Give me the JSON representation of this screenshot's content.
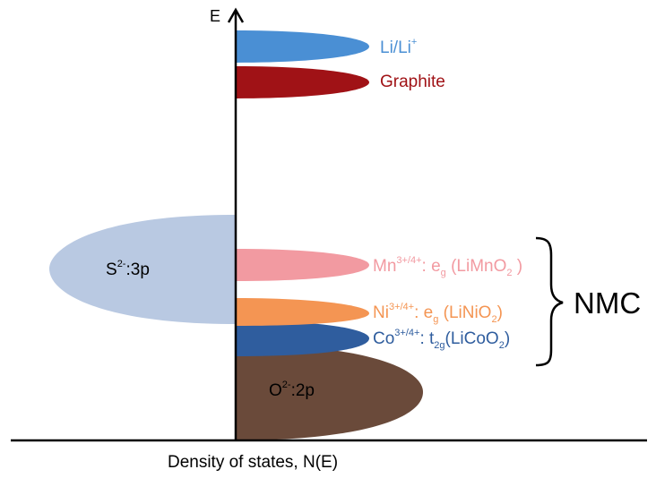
{
  "axes": {
    "y_label": "E",
    "x_label": "Density of states, N(E)"
  },
  "bands": {
    "li": {
      "label_main": "Li/Li",
      "label_sup": "+",
      "color": "#4a8fd4",
      "text_color": "#4a8fd4"
    },
    "graphite": {
      "label_main": "Graphite",
      "color": "#a01216",
      "text_color": "#a01216"
    },
    "s3p": {
      "label_s": "S",
      "label_sup": "2-",
      "label_rest": ":3p",
      "color": "#b9c9e2",
      "text_color": "#000000"
    },
    "mn": {
      "label_el": "Mn",
      "label_sup": "3+/4+",
      "label_mid": ": e",
      "label_sub": "g",
      "label_comp_a": " (LiMnO",
      "label_comp_sub": "2",
      "label_comp_b": " )",
      "color": "#f29aa1",
      "text_color": "#f29aa1"
    },
    "ni": {
      "label_el": "Ni",
      "label_sup": "3+/4+",
      "label_mid": ": e",
      "label_sub": "g",
      "label_comp_a": " (LiNiO",
      "label_comp_sub": "2",
      "label_comp_b": ")",
      "color": "#f49553",
      "text_color": "#f49553"
    },
    "co": {
      "label_el": "Co",
      "label_sup": "3+/4+",
      "label_mid": ": t",
      "label_sub": "2g",
      "label_comp_a": "(LiCoO",
      "label_comp_sub": "2",
      "label_comp_b": ")",
      "color": "#2f5d9e",
      "text_color": "#2f5d9e"
    },
    "o2p": {
      "label_s": "O",
      "label_sup": "2-",
      "label_rest": ":2p",
      "color": "#6a4a3a",
      "text_color": "#000000"
    }
  },
  "group": {
    "label": "NMC"
  }
}
